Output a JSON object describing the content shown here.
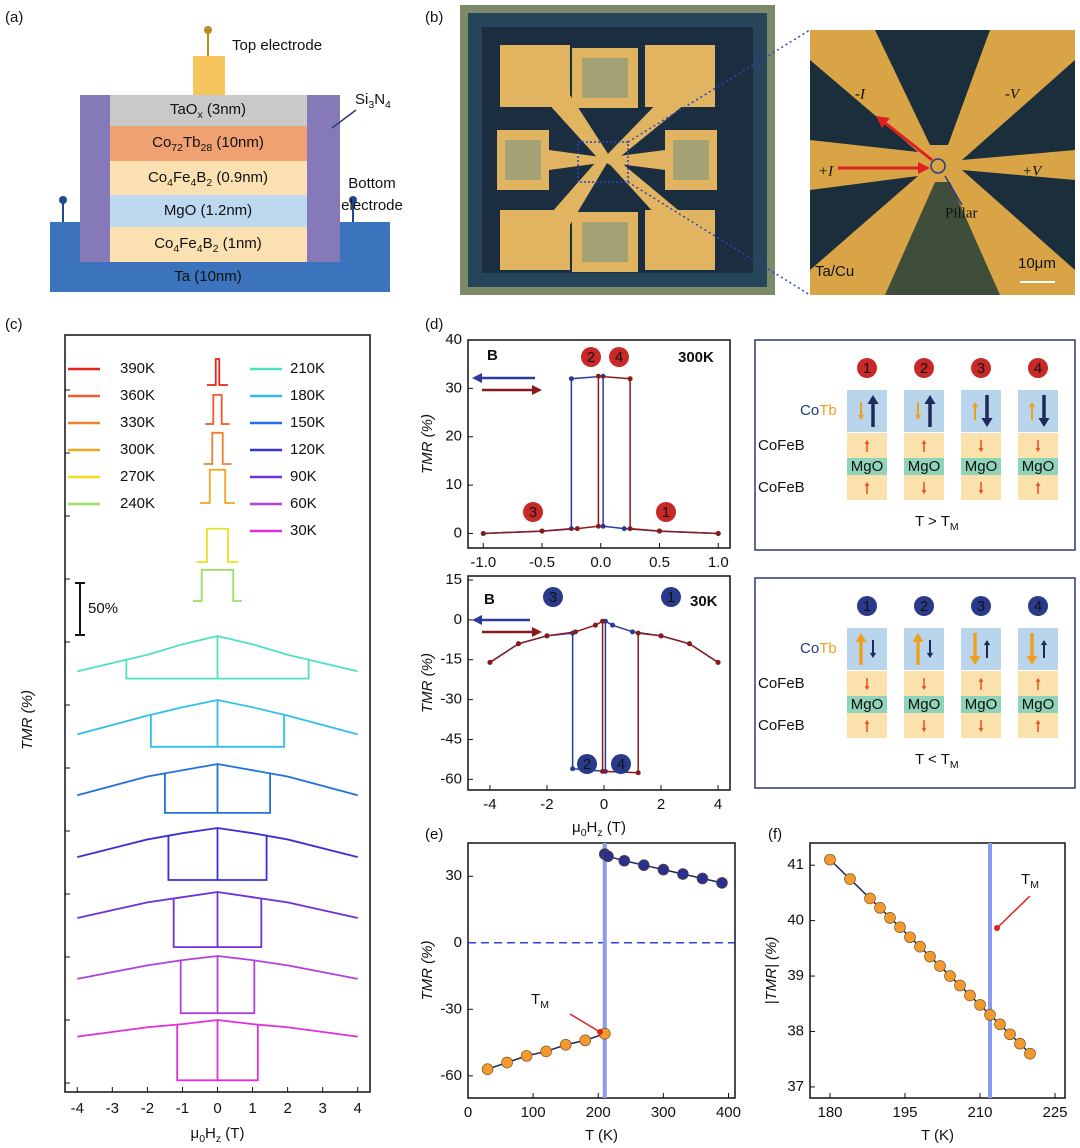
{
  "panel_labels": [
    "(a)",
    "(b)",
    "(c)",
    "(d)",
    "(e)",
    "(f)"
  ],
  "stack": {
    "top_electrode": "Top electrode",
    "passivation": {
      "parts": [
        "Si",
        "3",
        "N",
        "4"
      ]
    },
    "bottom_electrode": [
      "Bottom",
      "electrode"
    ],
    "layers": [
      {
        "parts": [
          "TaO",
          "x",
          " (3nm)"
        ]
      },
      {
        "parts": [
          "Co",
          "72",
          "Tb",
          "28",
          " (10nm)"
        ]
      },
      {
        "parts": [
          "Co",
          "4",
          "Fe",
          "4",
          "B",
          "2",
          " (0.9nm)"
        ]
      },
      {
        "parts": [
          "MgO (1.2nm)"
        ]
      },
      {
        "parts": [
          "Co",
          "4",
          "Fe",
          "4",
          "B",
          "2",
          " (1nm)"
        ]
      },
      {
        "parts": [
          "Ta (10nm)"
        ]
      }
    ]
  },
  "device": {
    "labels": [
      "-I",
      "-V",
      "+I",
      "+V"
    ],
    "pillar": "Pillar",
    "material": "Ta/Cu",
    "scale": "10μm"
  },
  "schematics": [
    {
      "states": [
        "1",
        "2",
        "3",
        "4"
      ],
      "magnet": [
        "Co",
        "Tb"
      ],
      "layers": [
        "CoFeB",
        "MgO",
        "CoFeB"
      ],
      "condition": {
        "parts": [
          "T > T",
          "M"
        ]
      }
    },
    {
      "states": [
        "1",
        "2",
        "3",
        "4"
      ],
      "magnet": [
        "Co",
        "Tb"
      ],
      "layers": [
        "CoFeB",
        "MgO",
        "CoFeB"
      ],
      "condition": {
        "parts": [
          "T < T",
          "M"
        ]
      }
    }
  ],
  "chart_data": [
    {
      "type": "line",
      "ylabel": "TMR (%)",
      "xlabel": {
        "parts": [
          "μ",
          "0",
          "H",
          "z",
          " (T)"
        ]
      },
      "xlim": [
        -4.35,
        4.35
      ],
      "xticks": [
        -4,
        -3,
        -2,
        -1,
        0,
        1,
        2,
        3,
        4
      ],
      "scale_bar": {
        "value": 50,
        "label": "50%"
      },
      "series": [
        {
          "name": "390K",
          "color": "#e8231b",
          "x": [
            -0.3,
            -0.05,
            -0.05,
            0.05,
            0.05,
            0.3
          ],
          "values": [
            0,
            0,
            25,
            25,
            0,
            0
          ]
        },
        {
          "name": "360K",
          "color": "#f05a28",
          "x": [
            -0.35,
            -0.12,
            -0.12,
            0.12,
            0.12,
            0.35
          ],
          "values": [
            0,
            0,
            28,
            28,
            0,
            0
          ]
        },
        {
          "name": "330K",
          "color": "#f08030",
          "x": [
            -0.4,
            -0.15,
            -0.15,
            0.15,
            0.15,
            0.4
          ],
          "values": [
            0,
            0,
            30,
            30,
            0,
            0
          ]
        },
        {
          "name": "300K",
          "color": "#f0a820",
          "x": [
            -0.5,
            -0.22,
            -0.22,
            0.22,
            0.22,
            0.5
          ],
          "values": [
            0,
            0,
            32,
            32,
            0,
            0
          ]
        },
        {
          "name": "270K",
          "color": "#eee020",
          "x": [
            -0.6,
            -0.3,
            -0.3,
            0.3,
            0.3,
            0.6
          ],
          "values": [
            0,
            0,
            32,
            32,
            0,
            0
          ]
        },
        {
          "name": "240K",
          "color": "#98e060",
          "x": [
            -0.7,
            -0.45,
            -0.45,
            0.45,
            0.45,
            0.7
          ],
          "values": [
            0,
            0,
            30,
            30,
            0,
            0
          ]
        },
        {
          "name": "210K",
          "color": "#50e0c0",
          "x": [
            -4,
            -2,
            -1,
            0,
            1,
            2,
            4
          ],
          "values": [
            -34,
            -18,
            -8,
            0,
            -8,
            -18,
            -34
          ],
          "switch_field": 2.6,
          "loop_value": -41
        },
        {
          "name": "180K",
          "color": "#30c0e8",
          "x": [
            -4,
            -2,
            -1,
            0,
            1,
            2,
            4
          ],
          "values": [
            -33,
            -15,
            -7,
            0,
            -7,
            -15,
            -33
          ],
          "switch_field": 1.9,
          "loop_value": -45
        },
        {
          "name": "150K",
          "color": "#2070e0",
          "x": [
            -4,
            -2,
            -1,
            0,
            1,
            2,
            4
          ],
          "values": [
            -30,
            -12,
            -6,
            0,
            -6,
            -12,
            -30
          ],
          "switch_field": 1.5,
          "loop_value": -47
        },
        {
          "name": "120K",
          "color": "#3a30d8",
          "x": [
            -4,
            -2,
            -1,
            0,
            1,
            2,
            4
          ],
          "values": [
            -28,
            -11,
            -5,
            0,
            -5,
            -11,
            -28
          ],
          "switch_field": 1.4,
          "loop_value": -50
        },
        {
          "name": "90K",
          "color": "#7030d8",
          "x": [
            -4,
            -2,
            -1,
            0,
            1,
            2,
            4
          ],
          "values": [
            -25,
            -10,
            -5,
            0,
            -5,
            -10,
            -25
          ],
          "switch_field": 1.25,
          "loop_value": -53
        },
        {
          "name": "60K",
          "color": "#b040e0",
          "x": [
            -4,
            -2,
            -1,
            0,
            1,
            2,
            4
          ],
          "values": [
            -22,
            -9,
            -4,
            0,
            -4,
            -9,
            -22
          ],
          "switch_field": 1.05,
          "loop_value": -55
        },
        {
          "name": "30K",
          "color": "#e030d8",
          "x": [
            -4,
            -2,
            -1,
            0,
            1,
            2,
            4
          ],
          "values": [
            -16,
            -7,
            -4,
            0,
            -4,
            -7,
            -16
          ],
          "switch_field": 1.15,
          "loop_value": -58
        }
      ]
    },
    {
      "type": "line",
      "ylabel": "TMR (%)",
      "temperature": "300K",
      "field": "B",
      "states": [
        "3",
        "2",
        "4",
        "1"
      ],
      "xlim": [
        -1.13,
        1.1
      ],
      "xticks": [
        {
          "value": -1,
          "label": "-1.0"
        },
        -0.5,
        {
          "value": 0,
          "label": "0.0"
        },
        0.5,
        {
          "value": 1,
          "label": "1.0"
        }
      ],
      "ylim": [
        -3,
        40
      ],
      "yticks": [
        0,
        10,
        20,
        30,
        40
      ],
      "series": [
        {
          "color": "#2a3a9a",
          "x": [
            1,
            0.5,
            0.2,
            0.02,
            0.02,
            -0.25,
            -0.25,
            -0.5,
            -1
          ],
          "values": [
            0,
            0.5,
            1,
            1.5,
            32.5,
            32,
            1,
            0.5,
            0
          ]
        },
        {
          "color": "#8a1a1a",
          "x": [
            -1,
            -0.5,
            -0.2,
            -0.02,
            -0.02,
            0.25,
            0.25,
            0.5,
            1
          ],
          "values": [
            0,
            0.5,
            1,
            1.5,
            32.5,
            32,
            1,
            0.5,
            0
          ]
        }
      ]
    },
    {
      "type": "line",
      "ylabel": "TMR (%)",
      "xlabel": {
        "parts": [
          "μ",
          "0",
          "H",
          "z",
          " (T)"
        ]
      },
      "temperature": "30K",
      "field": "B",
      "states": [
        "3",
        "1",
        "2",
        "4"
      ],
      "xlim": [
        -4.77,
        4.42
      ],
      "xticks": [
        -4,
        -2,
        0,
        2,
        4
      ],
      "ylim": [
        -64,
        16.5
      ],
      "yticks": [
        15,
        0,
        -15,
        -30,
        -45,
        -60
      ],
      "series": [
        {
          "color": "#2a3a9a",
          "x": [
            4,
            3,
            2,
            1,
            0.3,
            0.05,
            0.05,
            -1.1,
            -1.1,
            -2,
            -3,
            -4
          ],
          "values": [
            -16,
            -9,
            -6,
            -4.5,
            -2,
            -0.5,
            -57,
            -56,
            -5,
            -6,
            -9,
            -16
          ]
        },
        {
          "color": "#8a1a1a",
          "x": [
            -4,
            -3,
            -2,
            -1,
            -0.3,
            -0.05,
            -0.05,
            1.2,
            1.2,
            2,
            3,
            4
          ],
          "values": [
            -16,
            -9,
            -6,
            -4.5,
            -2,
            -0.5,
            -57,
            -57.5,
            -5,
            -6,
            -9,
            -16
          ]
        }
      ]
    },
    {
      "type": "scatter",
      "ylabel": "TMR (%)",
      "xlabel": "T (K)",
      "annotation": {
        "parts": [
          "T",
          "M"
        ]
      },
      "xlim": [
        0,
        410
      ],
      "xticks": [
        0,
        100,
        200,
        300,
        400
      ],
      "ylim": [
        -70,
        45
      ],
      "yticks": [
        30,
        0,
        -30,
        -60
      ],
      "hline": 0,
      "vline": 210,
      "series": [
        {
          "color": "#2a3090",
          "x": [
            210,
            215,
            240,
            270,
            300,
            330,
            360,
            390
          ],
          "values": [
            40,
            39,
            37,
            35,
            33,
            31,
            29,
            27
          ]
        },
        {
          "color": "#f39a2e",
          "x": [
            30,
            60,
            90,
            120,
            150,
            180,
            210
          ],
          "values": [
            -57,
            -54,
            -51,
            -49,
            -46,
            -44,
            -41
          ]
        }
      ]
    },
    {
      "type": "scatter",
      "ylabel": "|TMR| (%)",
      "xlabel": "T (K)",
      "annotation": {
        "parts": [
          "T",
          "M"
        ]
      },
      "xlim": [
        176,
        227
      ],
      "xticks": [
        180,
        195,
        210,
        225
      ],
      "ylim": [
        36.8,
        41.4
      ],
      "yticks": [
        37,
        38,
        39,
        40,
        41
      ],
      "vline": 212,
      "series": [
        {
          "color": "#f39a2e",
          "x": [
            180,
            184,
            188,
            190,
            192,
            194,
            196,
            198,
            200,
            202,
            204,
            206,
            208,
            210,
            212,
            214,
            216,
            218,
            220
          ],
          "values": [
            41.1,
            40.75,
            40.4,
            40.23,
            40.05,
            39.88,
            39.7,
            39.53,
            39.35,
            39.18,
            39.0,
            38.83,
            38.65,
            38.48,
            38.3,
            38.13,
            37.95,
            37.78,
            37.6
          ]
        }
      ]
    }
  ]
}
